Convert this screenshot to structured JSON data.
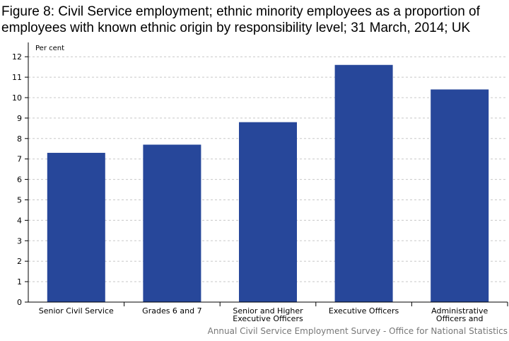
{
  "title": "Figure 8: Civil Service employment; ethnic minority employees as a proportion of employees with known ethnic origin by responsibility level; 31 March, 2014; UK",
  "source": "Annual Civil Service Employment Survey - Office for National Statistics",
  "chart_data": {
    "type": "bar",
    "title": "Figure 8: Civil Service employment; ethnic minority employees as a proportion of employees with known ethnic origin by responsibility level; 31 March, 2014; UK",
    "ylabel": "Per cent",
    "xlabel": "",
    "ylim": [
      0,
      12
    ],
    "yticks": [
      0,
      1,
      2,
      3,
      4,
      5,
      6,
      7,
      8,
      9,
      10,
      11,
      12
    ],
    "grid": true,
    "categories": [
      [
        "Senior Civil Service"
      ],
      [
        "Grades 6 and 7"
      ],
      [
        "Senior and Higher",
        "Executive Officers"
      ],
      [
        "Executive Officers"
      ],
      [
        "Administrative",
        "Officers and"
      ]
    ],
    "values": [
      7.3,
      7.7,
      8.8,
      11.6,
      10.4
    ],
    "bar_color": "#27479a"
  }
}
